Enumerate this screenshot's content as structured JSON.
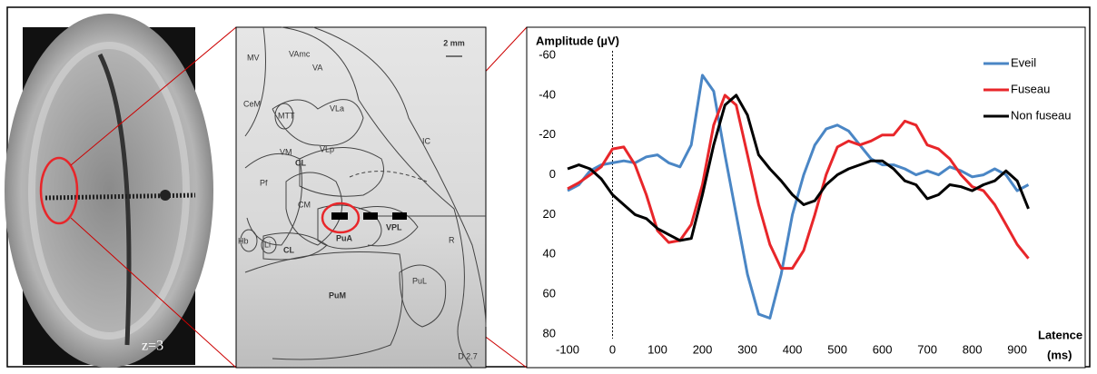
{
  "mri": {
    "label": "z=3"
  },
  "atlas": {
    "labels": [
      "MV",
      "VAmc",
      "VA",
      "MTT",
      "CeM",
      "VLa",
      "VM",
      "VLp",
      "CL",
      "IC",
      "Pf",
      "CM",
      "Hb",
      "Li",
      "CL",
      "PuA",
      "VPL",
      "R",
      "PuL",
      "PuM"
    ],
    "scale": "2 mm",
    "plate": "D 2.7"
  },
  "chart_data": {
    "type": "line",
    "ylabel": "Amplitude (µV)",
    "xlabel": "Latence",
    "xunit": "(ms)",
    "x": [
      -100,
      -75,
      -50,
      -25,
      0,
      25,
      50,
      75,
      100,
      125,
      150,
      175,
      200,
      225,
      250,
      275,
      300,
      325,
      350,
      375,
      400,
      425,
      450,
      475,
      500,
      525,
      550,
      575,
      600,
      625,
      650,
      675,
      700,
      725,
      750,
      775,
      800,
      825,
      850,
      875,
      900,
      925
    ],
    "series": [
      {
        "name": "Eveil",
        "color": "#4a86c5",
        "values": [
          8,
          5,
          -2,
          -5,
          -6,
          -7,
          -6,
          -9,
          -10,
          -6,
          -4,
          -15,
          -50,
          -42,
          -10,
          20,
          50,
          70,
          72,
          50,
          20,
          0,
          -15,
          -23,
          -25,
          -22,
          -15,
          -8,
          -5,
          -5,
          -3,
          0,
          -2,
          0,
          -4,
          -2,
          1,
          0,
          -3,
          0,
          8,
          5
        ]
      },
      {
        "name": "Fuseau",
        "color": "#e8262a",
        "values": [
          7,
          4,
          0,
          -4,
          -13,
          -14,
          -5,
          10,
          28,
          34,
          33,
          25,
          5,
          -25,
          -40,
          -35,
          -10,
          15,
          35,
          47,
          47,
          38,
          20,
          0,
          -14,
          -17,
          -15,
          -17,
          -20,
          -20,
          -27,
          -25,
          -15,
          -13,
          -8,
          0,
          6,
          8,
          15,
          25,
          35,
          42
        ]
      },
      {
        "name": "Non fuseau",
        "color": "#000000",
        "values": [
          -3,
          -5,
          -3,
          2,
          10,
          15,
          20,
          22,
          27,
          30,
          33,
          32,
          10,
          -15,
          -35,
          -40,
          -30,
          -10,
          -3,
          3,
          10,
          15,
          13,
          5,
          0,
          -3,
          -5,
          -7,
          -7,
          -3,
          3,
          5,
          12,
          10,
          5,
          6,
          8,
          5,
          3,
          -2,
          3,
          17
        ]
      }
    ],
    "xlim": [
      -100,
      930
    ],
    "xticks": [
      -100,
      0,
      100,
      200,
      300,
      400,
      500,
      600,
      700,
      800,
      900
    ],
    "ylim": [
      -60,
      80
    ],
    "yticks": [
      -60,
      -40,
      -20,
      0,
      20,
      40,
      60,
      80
    ],
    "y_inverted": true,
    "zero_line": true,
    "legend": "top-right"
  }
}
